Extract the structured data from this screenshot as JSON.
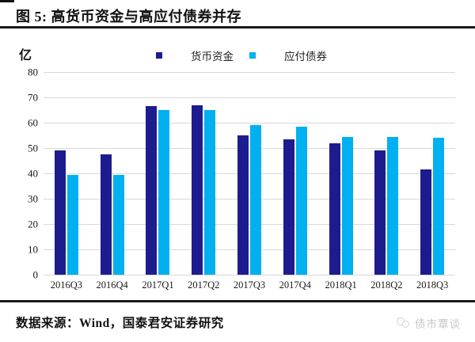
{
  "figure": {
    "title": "图 5: 高货币资金与高应付债券并存",
    "y_unit": "亿",
    "source_note": "数据来源：Wind，国泰君安证券研究",
    "watermark": "债市覃谈"
  },
  "colors": {
    "series_dark": "#1C1C8F",
    "series_light": "#00B0F0",
    "gridline": "#d9d9d9",
    "rule": "#1a1a1a",
    "watermark": "#c6c6c6"
  },
  "chart_data": {
    "type": "bar",
    "title": "高货币资金与高应付债券并存",
    "ylabel": "亿",
    "xlabel": "",
    "categories": [
      "2016Q3",
      "2016Q4",
      "2017Q1",
      "2017Q2",
      "2017Q3",
      "2017Q4",
      "2018Q1",
      "2018Q2",
      "2018Q3"
    ],
    "series": [
      {
        "name": "货币资金",
        "color": "#1C1C8F",
        "values": [
          49,
          47.5,
          66.5,
          67,
          55,
          53.5,
          52,
          49,
          41.5
        ]
      },
      {
        "name": "应付债券",
        "color": "#00B0F0",
        "values": [
          39.5,
          39.5,
          65,
          65,
          59,
          58.5,
          54.5,
          54.5,
          54
        ]
      }
    ],
    "ylim": [
      0,
      80
    ],
    "ytick_step": 10,
    "yticks": [
      0,
      10,
      20,
      30,
      40,
      50,
      60,
      70,
      80
    ],
    "grid": true,
    "legend_position": "top"
  }
}
